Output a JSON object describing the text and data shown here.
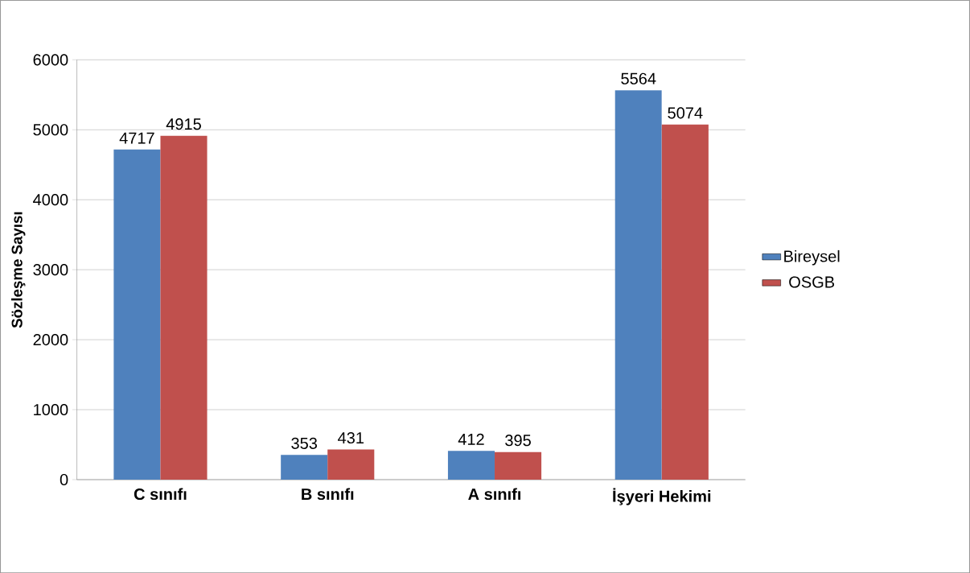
{
  "chart_data": {
    "type": "bar",
    "ylabel": "Sözleşme Sayısı",
    "categories": [
      "C sınıfı",
      "B sınıfı",
      "A sınıfı",
      "İşyeri Hekimi"
    ],
    "series": [
      {
        "name": "Bireysel",
        "color": "#4f81bd",
        "values": [
          4717,
          353,
          412,
          5564
        ]
      },
      {
        "name": "OSGB",
        "color": "#c0504d",
        "values": [
          4915,
          431,
          395,
          5074
        ]
      }
    ],
    "ylim": [
      0,
      6000
    ],
    "yticks": [
      0,
      1000,
      2000,
      3000,
      4000,
      5000,
      6000
    ],
    "grid": "y",
    "legend": "right",
    "data_labels": true
  }
}
